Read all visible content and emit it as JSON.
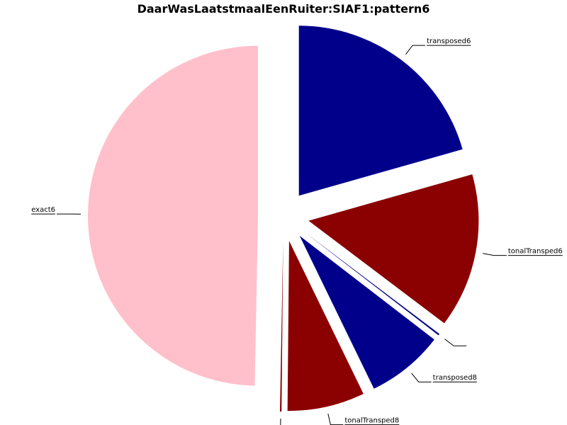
{
  "chart_data": {
    "type": "pie",
    "title": "DaarWasLaatstmaalEenRuiter:SIAF1:pattern6",
    "slices": [
      {
        "label": "transposed6",
        "value": 20.6,
        "color": "#00008B"
      },
      {
        "label": "tonalTransped6",
        "value": 14.7,
        "color": "#8B0000"
      },
      {
        "label": "",
        "value": 0.15,
        "color": "#00008B"
      },
      {
        "label": "transposed8",
        "value": 7.35,
        "color": "#00008B"
      },
      {
        "label": "tonalTransped8",
        "value": 7.35,
        "color": "#8B0000"
      },
      {
        "label": "",
        "value": 0.15,
        "color": "#8B0000"
      },
      {
        "label": "exact6",
        "value": 49.7,
        "color": "#FFC0CB"
      }
    ]
  }
}
